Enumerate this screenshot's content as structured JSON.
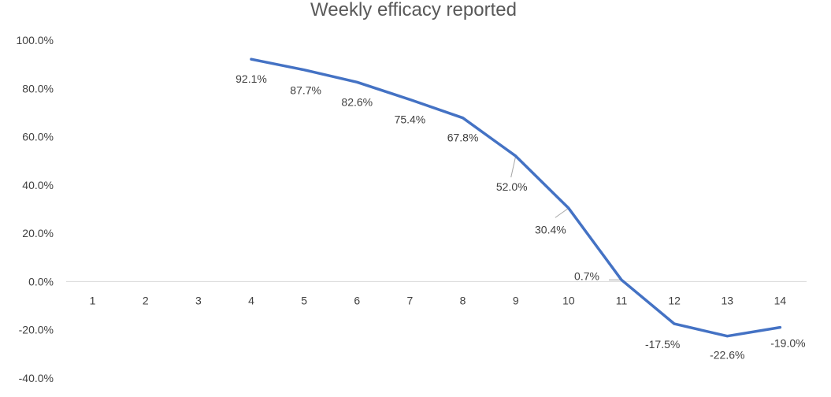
{
  "chart_data": {
    "type": "line",
    "title": "Weekly efficacy reported",
    "xlabel": "",
    "ylabel": "",
    "categories": [
      "1",
      "2",
      "3",
      "4",
      "5",
      "6",
      "7",
      "8",
      "9",
      "10",
      "11",
      "12",
      "13",
      "14"
    ],
    "y_tick_labels": [
      "100.0%",
      "80.0%",
      "60.0%",
      "40.0%",
      "20.0%",
      "0.0%",
      "-20.0%",
      "-40.0%"
    ],
    "ylim": [
      -40,
      100
    ],
    "y_ticks": [
      100,
      80,
      60,
      40,
      20,
      0,
      -20,
      -40
    ],
    "grid": false,
    "legend": "none",
    "series": [
      {
        "values": [
          null,
          null,
          null,
          92.1,
          87.7,
          82.6,
          75.4,
          67.8,
          52.0,
          30.4,
          0.7,
          -17.5,
          -22.6,
          -19.0
        ],
        "labels": [
          "",
          "",
          "",
          "92.1%",
          "87.7%",
          "82.6%",
          "75.4%",
          "67.8%",
          "52.0%",
          "30.4%",
          "0.7%",
          "-17.5%",
          "-22.6%",
          "-19.0%"
        ],
        "color": "#4472C4"
      }
    ]
  }
}
